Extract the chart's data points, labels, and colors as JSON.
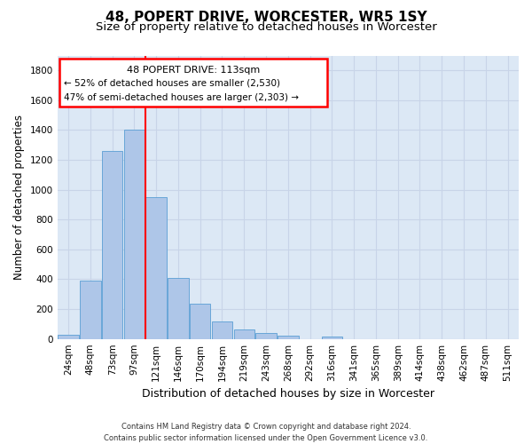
{
  "title_line1": "48, POPERT DRIVE, WORCESTER, WR5 1SY",
  "title_line2": "Size of property relative to detached houses in Worcester",
  "xlabel": "Distribution of detached houses by size in Worcester",
  "ylabel": "Number of detached properties",
  "categories": [
    "24sqm",
    "48sqm",
    "73sqm",
    "97sqm",
    "121sqm",
    "146sqm",
    "170sqm",
    "194sqm",
    "219sqm",
    "243sqm",
    "268sqm",
    "292sqm",
    "316sqm",
    "341sqm",
    "365sqm",
    "389sqm",
    "414sqm",
    "438sqm",
    "462sqm",
    "487sqm",
    "511sqm"
  ],
  "bar_values": [
    25,
    390,
    1260,
    1400,
    950,
    410,
    235,
    120,
    65,
    40,
    20,
    0,
    15,
    0,
    0,
    0,
    0,
    0,
    0,
    0,
    0
  ],
  "bar_color": "#aec6e8",
  "bar_edgecolor": "#5a9fd4",
  "grid_color": "#c8d4e8",
  "ylim": [
    0,
    1900
  ],
  "yticks": [
    0,
    200,
    400,
    600,
    800,
    1000,
    1200,
    1400,
    1600,
    1800
  ],
  "annotation_box_text_line1": "48 POPERT DRIVE: 113sqm",
  "annotation_box_text_line2": "← 52% of detached houses are smaller (2,530)",
  "annotation_box_text_line3": "47% of semi-detached houses are larger (2,303) →",
  "red_line_x": 3.5,
  "footnote_line1": "Contains HM Land Registry data © Crown copyright and database right 2024.",
  "footnote_line2": "Contains public sector information licensed under the Open Government Licence v3.0.",
  "background_color": "#ffffff",
  "plot_bg_color": "#dce8f5",
  "title1_fontsize": 11,
  "title2_fontsize": 9.5,
  "ylabel_fontsize": 8.5,
  "xlabel_fontsize": 9,
  "tick_fontsize": 7.5,
  "footnote_fontsize": 6
}
